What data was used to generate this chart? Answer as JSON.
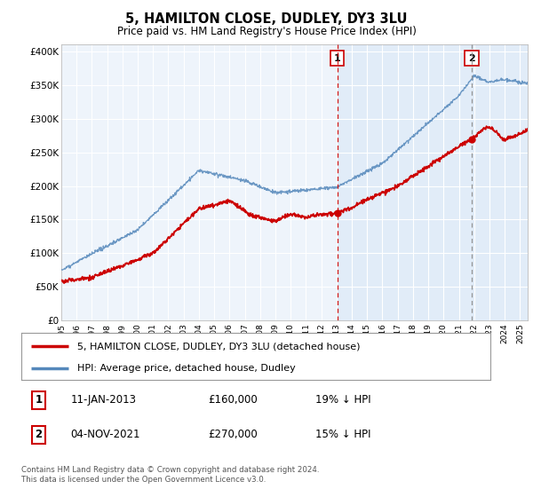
{
  "title": "5, HAMILTON CLOSE, DUDLEY, DY3 3LU",
  "subtitle": "Price paid vs. HM Land Registry's House Price Index (HPI)",
  "background_color": "#ffffff",
  "plot_bg_color": "#eef4fb",
  "yticks": [
    0,
    50000,
    100000,
    150000,
    200000,
    250000,
    300000,
    350000,
    400000
  ],
  "ylim": [
    0,
    410000
  ],
  "xlim_start": 1995.0,
  "xlim_end": 2025.5,
  "legend_label_red": "5, HAMILTON CLOSE, DUDLEY, DY3 3LU (detached house)",
  "legend_label_blue": "HPI: Average price, detached house, Dudley",
  "transaction1_date": "11-JAN-2013",
  "transaction1_price": "£160,000",
  "transaction1_hpi": "19% ↓ HPI",
  "transaction1_year": 2013.04,
  "transaction1_value": 160000,
  "transaction2_date": "04-NOV-2021",
  "transaction2_price": "£270,000",
  "transaction2_hpi": "15% ↓ HPI",
  "transaction2_year": 2021.84,
  "transaction2_value": 270000,
  "footer": "Contains HM Land Registry data © Crown copyright and database right 2024.\nThis data is licensed under the Open Government Licence v3.0.",
  "red_color": "#cc0000",
  "blue_color": "#5588bb",
  "blue_fill": "#ddeeff",
  "shade_color": "#ddeeff"
}
